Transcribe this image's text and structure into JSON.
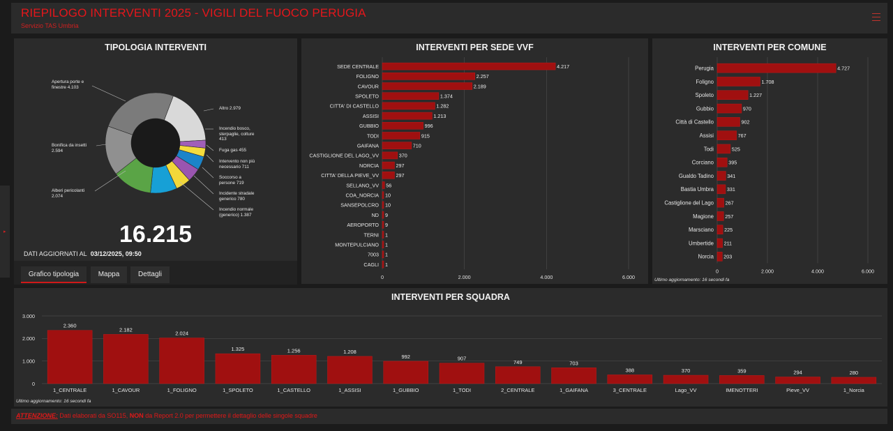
{
  "header": {
    "title": "RIEPILOGO INTERVENTI 2025 - VIGILI DEL FUOCO PERUGIA",
    "subtitle": "Servizio TAS Umbria"
  },
  "tipologia": {
    "title": "TIPOLOGIA INTERVENTI",
    "total": "16.215",
    "updated_label": "DATI AGGIORNATI AL",
    "updated_value": "03/12/2025, 09:50",
    "labels": [
      {
        "line1": "Apertura porte e",
        "line2": "finestre 4.103"
      },
      {
        "line1": "Altro 2.979",
        "line2": ""
      },
      {
        "line1": "Incendio bosco,",
        "line2": "sterpaglie, colture",
        "line3": "413"
      },
      {
        "line1": "Fuga gas 455",
        "line2": ""
      },
      {
        "line1": "Intervento non più",
        "line2": "necessario 711"
      },
      {
        "line1": "Soccorso a",
        "line2": "persone 719"
      },
      {
        "line1": "Incidente stradale",
        "line2": "generico 780"
      },
      {
        "line1": "Incendio normale",
        "line2": "(generico) 1.387"
      },
      {
        "line1": "Alberi pericolanti",
        "line2": "2.074"
      },
      {
        "line1": "Bonifica da insetti",
        "line2": "2.594"
      }
    ],
    "tabs": [
      "Grafico tipologia",
      "Mappa",
      "Dettagli"
    ]
  },
  "sede": {
    "title": "INTERVENTI PER SEDE VVF"
  },
  "comune": {
    "title": "INTERVENTI PER COMUNE",
    "note": "Ultimo aggiornamento: 16 secondi fa"
  },
  "squadra": {
    "title": "INTERVENTI PER SQUADRA",
    "note": "Ultimo aggiornamento: 16 secondi fa"
  },
  "warning": {
    "lead": "ATTENZIONE:",
    "part1": " Dati elaborati da SO115, ",
    "bold": "NON",
    "part2": " da Report 2.0 per permettere il dettaglio delle singole squadre"
  },
  "colors": {
    "accent": "#e4161b",
    "bar": "#a01010",
    "bar_edge": "#c41818"
  },
  "chart_data": [
    {
      "type": "pie",
      "title": "TIPOLOGIA INTERVENTI",
      "categories": [
        "Altro",
        "Incendio bosco, sterpaglie, colture",
        "Fuga gas",
        "Intervento non più necessario",
        "Soccorso a persone",
        "Incidente stradale generico",
        "Incendio normale (generico)",
        "Alberi pericolanti",
        "Bonifica da insetti",
        "Apertura porte e finestre"
      ],
      "values": [
        2979,
        413,
        455,
        711,
        719,
        780,
        1387,
        2074,
        2594,
        4103
      ],
      "colors": [
        "#d9d9d9",
        "#a05fb8",
        "#f4dc3c",
        "#1b84c9",
        "#9a55b0",
        "#f2d83a",
        "#17a0d6",
        "#5aa446",
        "#909090",
        "#7b7b7b"
      ]
    },
    {
      "type": "bar",
      "title": "INTERVENTI PER SEDE VVF",
      "orientation": "horizontal",
      "categories": [
        "SEDE CENTRALE",
        "FOLIGNO",
        "CAVOUR",
        "SPOLETO",
        "CITTA' DI CASTELLO",
        "ASSISI",
        "GUBBIO",
        "TODI",
        "GAIFANA",
        "CASTIGLIONE DEL LAGO_VV",
        "NORCIA",
        "CITTA' DELLA PIEVE_VV",
        "SELLANO_VV",
        "COA_NORCIA",
        "SANSEPOLCRO",
        "ND",
        "AEROPORTO",
        "TERNI",
        "MONTEPULCIANO",
        "7003",
        "CAGLI"
      ],
      "values": [
        4217,
        2257,
        2189,
        1374,
        1282,
        1213,
        996,
        915,
        710,
        370,
        297,
        297,
        56,
        10,
        10,
        9,
        9,
        1,
        1,
        1,
        1
      ],
      "value_labels": [
        "4.217",
        "2.257",
        "2.189",
        "1.374",
        "1.282",
        "1.213",
        "996",
        "915",
        "710",
        "370",
        "297",
        "297",
        "56",
        "10",
        "10",
        "9",
        "9",
        "1",
        "1",
        "1",
        "1"
      ],
      "xlim": [
        0,
        6000
      ],
      "ticks": [
        0,
        2000,
        4000,
        6000
      ],
      "tick_labels": [
        "0",
        "2.000",
        "4.000",
        "6.000"
      ]
    },
    {
      "type": "bar",
      "title": "INTERVENTI PER COMUNE",
      "orientation": "horizontal",
      "categories": [
        "Perugia",
        "Foligno",
        "Spoleto",
        "Gubbio",
        "Città di Castello",
        "Assisi",
        "Todi",
        "Corciano",
        "Gualdo Tadino",
        "Bastia Umbra",
        "Castiglione del Lago",
        "Magione",
        "Marsciano",
        "Umbertide",
        "Norcia"
      ],
      "values": [
        4727,
        1708,
        1227,
        970,
        902,
        767,
        525,
        395,
        341,
        331,
        267,
        257,
        225,
        211,
        203
      ],
      "value_labels": [
        "4.727",
        "1.708",
        "1.227",
        "970",
        "902",
        "767",
        "525",
        "395",
        "341",
        "331",
        "267",
        "257",
        "225",
        "211",
        "203"
      ],
      "xlim": [
        0,
        6000
      ],
      "ticks": [
        0,
        2000,
        4000,
        6000
      ],
      "tick_labels": [
        "0",
        "2.000",
        "4.000",
        "6.000"
      ]
    },
    {
      "type": "bar",
      "title": "INTERVENTI PER SQUADRA",
      "orientation": "vertical",
      "categories": [
        "1_CENTRALE",
        "1_CAVOUR",
        "1_FOLIGNO",
        "1_SPOLETO",
        "1_CASTELLO",
        "1_ASSISI",
        "1_GUBBIO",
        "1_TODI",
        "2_CENTRALE",
        "1_GAIFANA",
        "3_CENTRALE",
        "Lago_VV",
        "IMENOTTERI",
        "Pieve_VV",
        "1_Norcia"
      ],
      "values": [
        2360,
        2182,
        2024,
        1325,
        1256,
        1208,
        992,
        907,
        749,
        703,
        388,
        370,
        359,
        294,
        280
      ],
      "value_labels": [
        "2.360",
        "2.182",
        "2.024",
        "1.325",
        "1.256",
        "1.208",
        "992",
        "907",
        "749",
        "703",
        "388",
        "370",
        "359",
        "294",
        "280"
      ],
      "ylim": [
        0,
        3000
      ],
      "ticks": [
        0,
        1000,
        2000,
        3000
      ],
      "tick_labels": [
        "0",
        "1.000",
        "2.000",
        "3.000"
      ]
    }
  ]
}
